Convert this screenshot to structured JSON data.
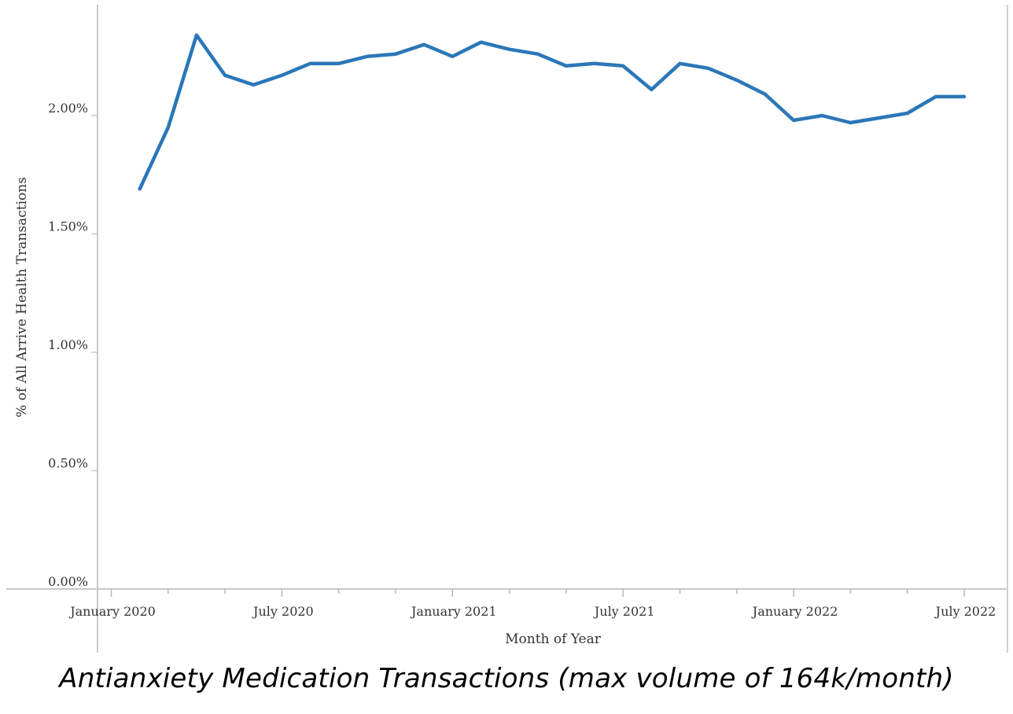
{
  "chart_data": {
    "type": "line",
    "title": "Antianxiety Medication Transactions (max volume of 164k/month)",
    "xlabel": "Month of Year",
    "ylabel": "% of All Arrive Health Transactions",
    "ylim": [
      0,
      2.38
    ],
    "yticks": [
      0,
      0.5,
      1.0,
      1.5,
      2.0
    ],
    "ytick_labels": [
      "0.00%",
      "0.50%",
      "1.00%",
      "1.50%",
      "2.00%"
    ],
    "x_month_range": [
      0,
      31
    ],
    "xticks": [
      0,
      6,
      12,
      18,
      24,
      30
    ],
    "xtick_labels": [
      "January 2020",
      "July 2020",
      "January 2021",
      "July 2021",
      "January 2022",
      "July 2022"
    ],
    "series": [
      {
        "name": "Antianxiety Medication",
        "color": "#2a77b8",
        "x": [
          1,
          2,
          3,
          4,
          5,
          6,
          7,
          8,
          9,
          10,
          11,
          12,
          13,
          14,
          15,
          16,
          17,
          18,
          19,
          20,
          21,
          22,
          23,
          24,
          25,
          26,
          27,
          28,
          29,
          30
        ],
        "values": [
          1.69,
          1.95,
          2.34,
          2.17,
          2.13,
          2.17,
          2.22,
          2.22,
          2.25,
          2.26,
          2.3,
          2.25,
          2.31,
          2.28,
          2.26,
          2.21,
          2.22,
          2.21,
          2.11,
          2.22,
          2.2,
          2.15,
          2.09,
          1.98,
          2.0,
          1.97,
          1.99,
          2.01,
          2.08,
          2.08
        ]
      }
    ]
  }
}
